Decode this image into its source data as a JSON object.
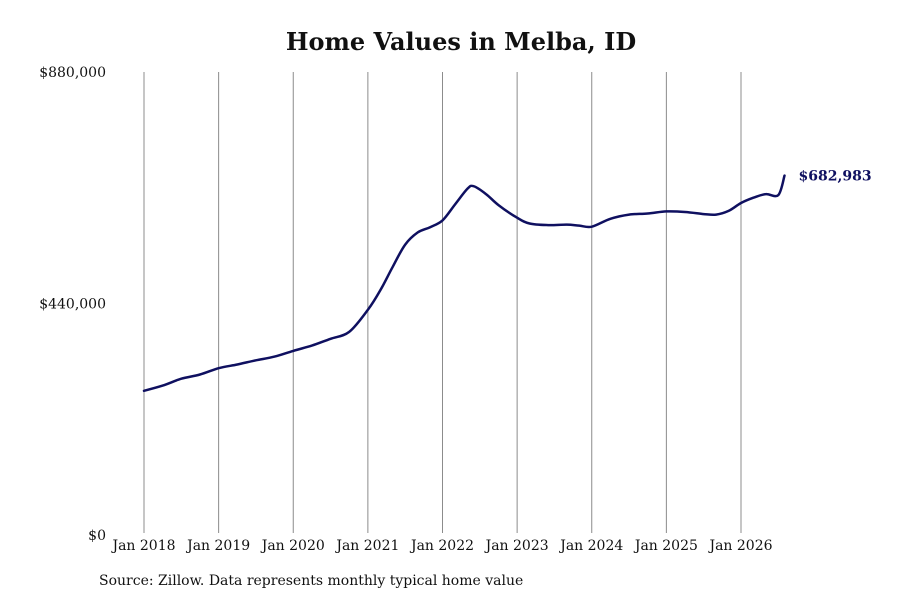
{
  "chart_data": {
    "type": "line",
    "title": "Home Values in Melba, ID",
    "xlabel": "",
    "ylabel": "",
    "ylim": [
      0,
      880000
    ],
    "y_ticks": [
      0,
      440000,
      880000
    ],
    "y_tick_labels": [
      "$0",
      "$440,000",
      "$880,000"
    ],
    "x_ticks": [
      "2018-01",
      "2019-01",
      "2020-01",
      "2021-01",
      "2022-01",
      "2023-01",
      "2024-01",
      "2025-01",
      "2026-01"
    ],
    "x_tick_labels": [
      "Jan 2018",
      "Jan 2019",
      "Jan 2020",
      "Jan 2021",
      "Jan 2022",
      "Jan 2023",
      "Jan 2024",
      "Jan 2025",
      "Jan 2026"
    ],
    "grid": {
      "vertical": true,
      "horizontal": false
    },
    "end_label": "$682,983",
    "line_color": "#0f1060",
    "series": [
      {
        "x": [
          "2018-01",
          "2018-04",
          "2018-07",
          "2018-10",
          "2019-01",
          "2019-04",
          "2019-07",
          "2019-10",
          "2020-01",
          "2020-04",
          "2020-07",
          "2020-10",
          "2021-01",
          "2021-03",
          "2021-05",
          "2021-07",
          "2021-09",
          "2021-11",
          "2022-01",
          "2022-03",
          "2022-05",
          "2022-06",
          "2022-08",
          "2022-10",
          "2023-01",
          "2023-03",
          "2023-06",
          "2023-09",
          "2023-11",
          "2024-01",
          "2024-04",
          "2024-07",
          "2024-10",
          "2025-01",
          "2025-04",
          "2025-07",
          "2025-09",
          "2025-11",
          "2026-01",
          "2026-03",
          "2026-05",
          "2026-07",
          "2026-08"
        ],
        "values": [
          274000,
          284000,
          297000,
          305000,
          317000,
          324000,
          332000,
          339000,
          350000,
          360000,
          373000,
          386000,
          428000,
          465000,
          510000,
          552000,
          575000,
          585000,
          598000,
          628000,
          658000,
          663000,
          648000,
          627000,
          603000,
          592000,
          589000,
          590000,
          588000,
          586000,
          601000,
          609000,
          611000,
          615000,
          614000,
          610000,
          609000,
          616000,
          631000,
          641000,
          648000,
          646000,
          683000
        ]
      }
    ]
  },
  "source_note": "Source: Zillow. Data represents monthly typical home value"
}
